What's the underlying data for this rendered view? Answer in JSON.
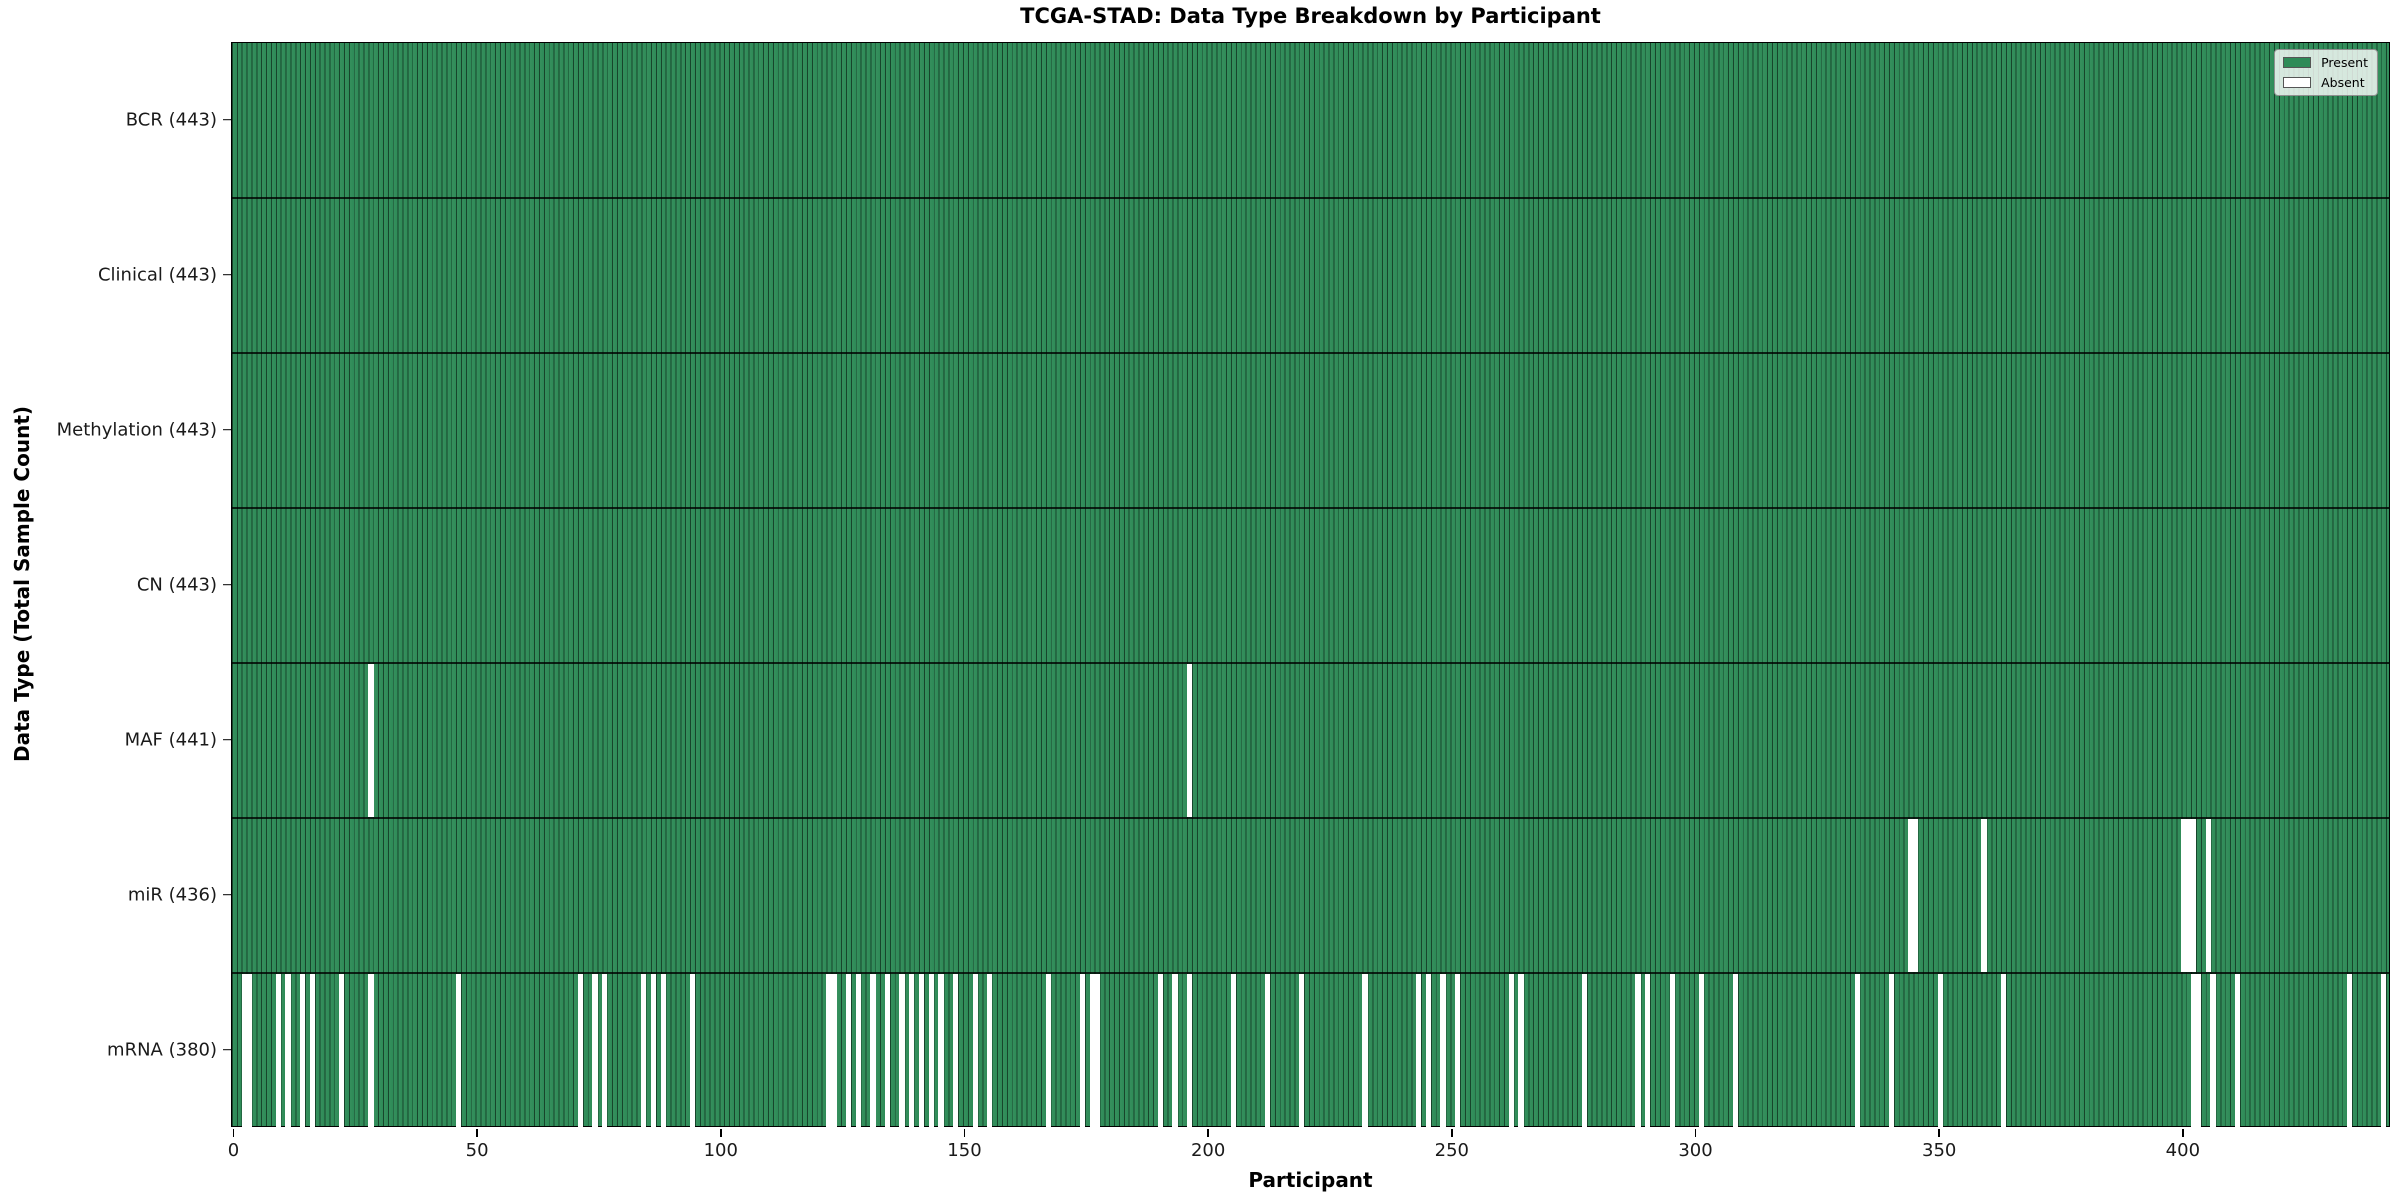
{
  "chart_data": {
    "type": "heatmap",
    "title": "TCGA-STAD: Data Type Breakdown by Participant",
    "xlabel": "Participant",
    "ylabel": "Data Type (Total Sample Count)",
    "n_participants": 443,
    "x_ticks": [
      0,
      50,
      100,
      150,
      200,
      250,
      300,
      350,
      400
    ],
    "colors": {
      "present": "#2e8b57",
      "absent": "#ffffff",
      "bar_edge": "rgba(0,0,0,0.5)",
      "row_separator": "rgba(0,0,0,0.78)",
      "spine": "#000000",
      "background": "#ffffff"
    },
    "legend": {
      "position": "upper right",
      "entries": [
        {
          "label": "Present",
          "color": "#2e8b57"
        },
        {
          "label": "Absent",
          "color": "#ffffff"
        }
      ]
    },
    "rows": [
      {
        "name": "BCR",
        "label": "BCR (443)",
        "total": 443,
        "absent": []
      },
      {
        "name": "Clinical",
        "label": "Clinical (443)",
        "total": 443,
        "absent": []
      },
      {
        "name": "Methylation",
        "label": "Methylation (443)",
        "total": 443,
        "absent": []
      },
      {
        "name": "CN",
        "label": "CN (443)",
        "total": 443,
        "absent": []
      },
      {
        "name": "MAF",
        "label": "MAF (441)",
        "total": 441,
        "absent": [
          28,
          196
        ]
      },
      {
        "name": "miR",
        "label": "miR (436)",
        "total": 436,
        "absent": [
          344,
          345,
          359,
          400,
          401,
          402,
          405
        ]
      },
      {
        "name": "mRNA",
        "label": "mRNA (380)",
        "total": 380,
        "absent": [
          2,
          3,
          9,
          11,
          14,
          16,
          22,
          28,
          46,
          71,
          74,
          76,
          84,
          86,
          88,
          94,
          122,
          123,
          126,
          128,
          131,
          134,
          137,
          139,
          141,
          143,
          145,
          148,
          152,
          155,
          167,
          174,
          176,
          177,
          190,
          193,
          196,
          205,
          212,
          219,
          232,
          243,
          245,
          248,
          251,
          262,
          264,
          277,
          288,
          290,
          295,
          301,
          308,
          333,
          340,
          350,
          363,
          402,
          403,
          406,
          411,
          434,
          441
        ]
      }
    ]
  }
}
